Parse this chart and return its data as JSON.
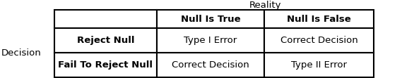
{
  "title": "Reality",
  "row_label": "Decision",
  "col_headers": [
    "",
    "Null Is True",
    "Null Is False"
  ],
  "rows": [
    [
      "Reject Null",
      "Type I Error",
      "Correct Decision"
    ],
    [
      "Fail To Reject Null",
      "Correct Decision",
      "Type II Error"
    ]
  ],
  "bg_color": "#ffffff",
  "border_color": "#000000",
  "text_color": "#000000",
  "font_size": 9.5
}
